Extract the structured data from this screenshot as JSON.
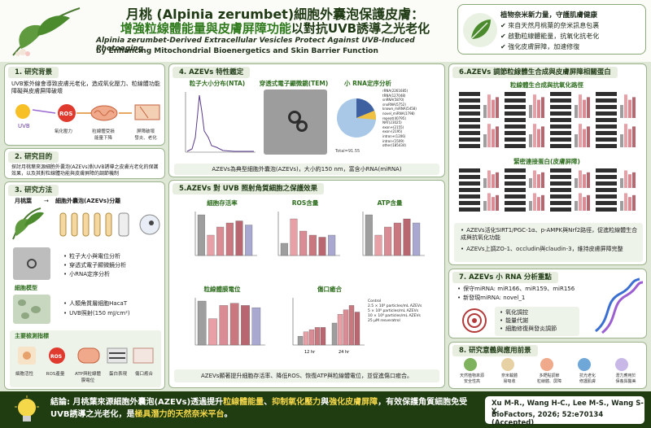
{
  "header": {
    "title_zh_line1": "月桃 (Alpinia zerumbet)細胞外囊泡保護皮膚：",
    "title_zh_line2_a": "增強粒線體能量與皮膚屏障功能",
    "title_zh_line2_b": "以對抗UVB誘導之光老化",
    "title_en_line1": "Alpinia zerumbet-Derived Extracellular Vesicles Protect Against UVB-Induced Photoaging",
    "title_en_line2": "by Enhancing Mitochondrial Bioenergetics and Skin Barrier Function"
  },
  "highlights": {
    "heading": "植物奈米新力量，守護肌膚健康",
    "items": [
      "來自天然月桃葉的奈米訊息包裹",
      "啟動粒線體能量，抗氧化抗老化",
      "強化皮膚屏障，加速修復"
    ]
  },
  "s1": {
    "title": "1. 研究背景",
    "text": "UVB紫外線會導致皮膚光老化，造成氧化壓力、粒線體功能障礙與皮膚屏障破壞",
    "uvb": "UVB",
    "ros": "ROS",
    "labels": [
      "氧化壓力",
      "粒線體受損\n能量下降",
      "屏障破壞\n發炎、老化"
    ]
  },
  "s2": {
    "title": "2. 研究目的",
    "text": "探討月桃葉來源細胞外囊泡(AZEVs)對UVB誘導之皮膚光老化的保護效果，以及其對粒線體功能與皮膚屏障的調節機制"
  },
  "s3": {
    "title": "3. 研究方法",
    "flow_a": "月桃葉",
    "flow_b": "細胞外囊泡(AZEVs)分離",
    "methods": [
      "粒子大小與電位分析",
      "穿透式電子顯微鏡分析",
      "小RNA定序分析"
    ],
    "cell_model": "細胞模型",
    "cells": [
      "人類角質層細胞HacaT",
      "UVB照射(150 mJ/cm²)"
    ],
    "indicators_title": "主要檢測指標",
    "indicators": [
      "細胞活性",
      "ROS產量",
      "ATP與粒線體\n膜電位",
      "蛋白表現",
      "傷口癒合"
    ]
  },
  "s4": {
    "title": "4. AZEVs 特性鑑定",
    "nta_title": "粒子大小分布(NTA)",
    "tem_title": "穿透式電子顯微鏡(TEM)",
    "rna_title": "小 RNA定序分析",
    "legend": [
      "rRNA(2261685)",
      "tRNA(127048)",
      "snRNA(5870)",
      "snoRNA(5752)",
      "known_miRNA(5458)",
      "novel_miRNA(1798)",
      "repeat(40795)",
      "NAT(23025)",
      "exon+(2155)",
      "exon-(2195)",
      "intron+(1206)",
      "intron-(1509)",
      "other(185434)"
    ],
    "total": "Total=91.55",
    "caption": "AZEVs為典型細胞外囊泡(AZEVs)，大小約150 nm，富含小RNA(miRNA)"
  },
  "s5": {
    "title": "5.AZEVs 對 UVB 照射角質細胞之保護效果",
    "chart_titles": [
      "細胞存活率",
      "ROS含量",
      "ATP含量",
      "粒線體膜電位",
      "傷口癒合"
    ],
    "caption": "AZEVs顯著提升細胞存活率、降低ROS、恢復ATP與粒線體電位，並促進傷口癒合。",
    "wound_legend": [
      "Control",
      "2.5 × 10⁸ particles/mL AZEVs",
      "5 × 10⁸ particles/mL AZEVs",
      "10 × 10⁸ particles/mL AZEVs",
      "25 μM resveratrol"
    ],
    "wound_x": [
      "12 hr",
      "24 hr"
    ]
  },
  "s6": {
    "title": "6.AZEVs 調節粒線體生合成與皮膚屏障相關蛋白",
    "sub1": "粒線體生合成與抗氧化路徑",
    "sub2": "緊密連接蛋白(皮膚屏障)",
    "points": [
      "AZEVs活化SIRT1/PGC-1α、p-AMPK與Nrf2路徑，促進粒線體生合成與抗氧化功能",
      "AZEVs上調ZO-1、occludin與claudin-3，維持皮膚屏障完整"
    ]
  },
  "s7": {
    "title": "7. AZEVs 小 RNA 分析重點",
    "items": [
      "保守miRNA: miR166、miR159、miR156",
      "新發現miRNA: novel_1"
    ],
    "functions": [
      "氧化調控",
      "能量代謝",
      "細胞修復與發炎調節"
    ]
  },
  "s8": {
    "title": "8. 研究意義與應用前景",
    "items": [
      "天然植物來源\n安全性高",
      "奈米載體\n易吸收",
      "多靶點調節\n粒線體、屏障",
      "抗光老化\n修護肌膚",
      "潛力應用於\n保養與醫美"
    ]
  },
  "footer": {
    "conclusion_a": "結論: 月桃葉來源細胞外囊泡(AZEVs)透過提升",
    "conclusion_b": "粒線體能量",
    "conclusion_c": "、",
    "conclusion_d": "抑制氧化壓力",
    "conclusion_e": "與",
    "conclusion_f": "強化皮膚屏障",
    "conclusion_g": "，有效保護角質細胞免受UVB誘導之光老化，是",
    "conclusion_h": "極具潛力的天然奈米平台",
    "conclusion_i": "。",
    "citation_line1": "Xu M-R., Wang H-C., Lee M-S., Wang S-Y.",
    "citation_line2": "BioFactors, 2026; 52:e70134 (Accepted)"
  },
  "colors": {
    "dark_green": "#1f3d10",
    "accent": "#2f7a1c",
    "ros": "#e03a2e",
    "bars": "#d98c93"
  }
}
